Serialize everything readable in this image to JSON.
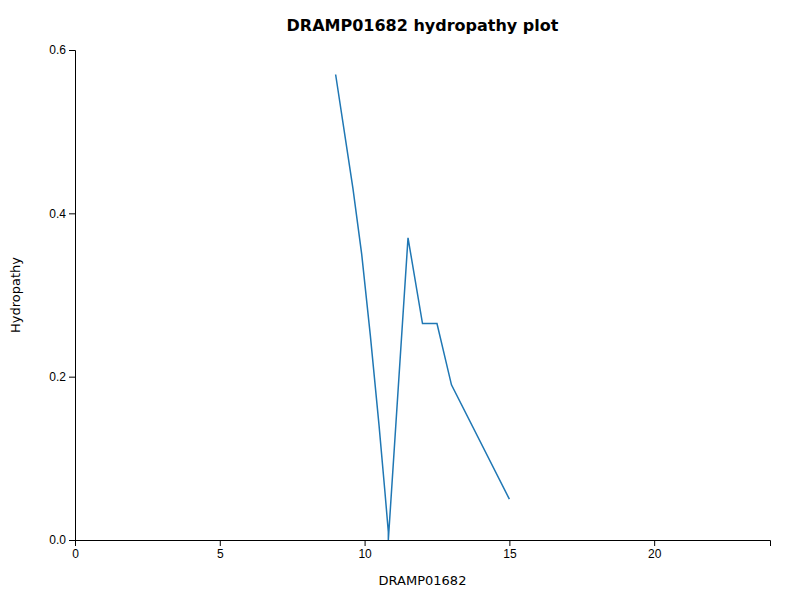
{
  "chart_data": {
    "type": "line",
    "title": "DRAMP01682 hydropathy plot",
    "xlabel": "DRAMP01682",
    "ylabel": "Hydropathy",
    "x": [
      9.0,
      9.3,
      9.6,
      9.9,
      10.2,
      10.5,
      10.7,
      10.82,
      10.82,
      11.5,
      12.0,
      12.5,
      13.0,
      13.0,
      15.0
    ],
    "values": [
      0.57,
      0.5,
      0.43,
      0.35,
      0.25,
      0.14,
      0.06,
      0.01,
      0.0,
      0.37,
      0.265,
      0.265,
      0.19,
      0.19,
      0.05
    ],
    "xlim": [
      0,
      24
    ],
    "ylim": [
      0.0,
      0.6
    ],
    "xticks": [
      0,
      5,
      10,
      15,
      20
    ],
    "yticks": [
      {
        "value": 0.0,
        "label": "0.0"
      },
      0.2,
      0.4,
      0.6
    ]
  }
}
